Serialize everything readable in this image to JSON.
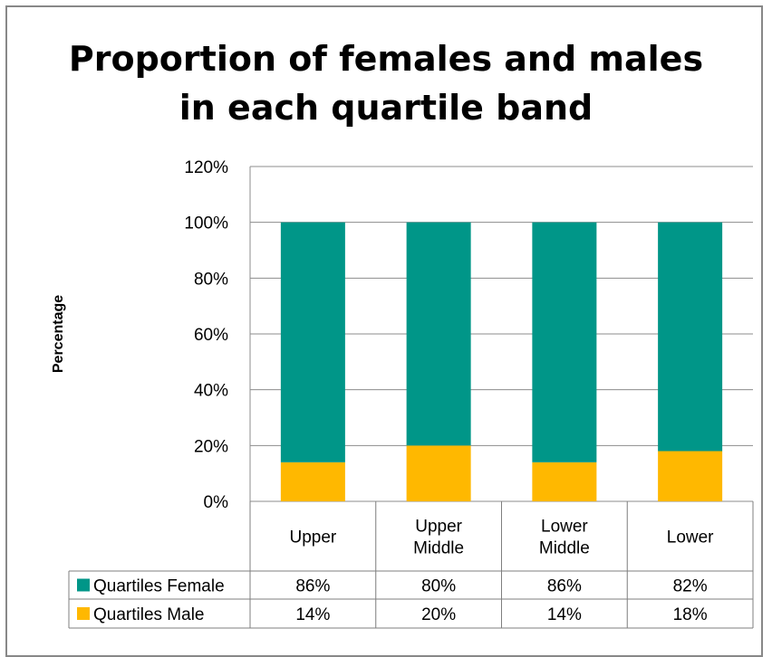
{
  "chart_data": {
    "type": "bar",
    "stacked": true,
    "title": "Proportion of females and males\nin each quartile band",
    "xlabel": "",
    "ylabel": "Percentage",
    "ylim": [
      0,
      120
    ],
    "yticks": [
      "0%",
      "20%",
      "40%",
      "60%",
      "80%",
      "100%",
      "120%"
    ],
    "categories": [
      [
        "Upper"
      ],
      [
        "Upper",
        "Middle"
      ],
      [
        "Lower",
        "Middle"
      ],
      [
        "Lower"
      ]
    ],
    "series": [
      {
        "name": "Quartiles Female",
        "color": "#009688",
        "values": [
          86,
          80,
          86,
          82
        ],
        "labels": [
          "86%",
          "80%",
          "86%",
          "82%"
        ]
      },
      {
        "name": "Quartiles Male",
        "color": "#FFB800",
        "values": [
          14,
          20,
          14,
          18
        ],
        "labels": [
          "14%",
          "20%",
          "14%",
          "18%"
        ]
      }
    ],
    "grid": true,
    "legend": "data-table"
  }
}
